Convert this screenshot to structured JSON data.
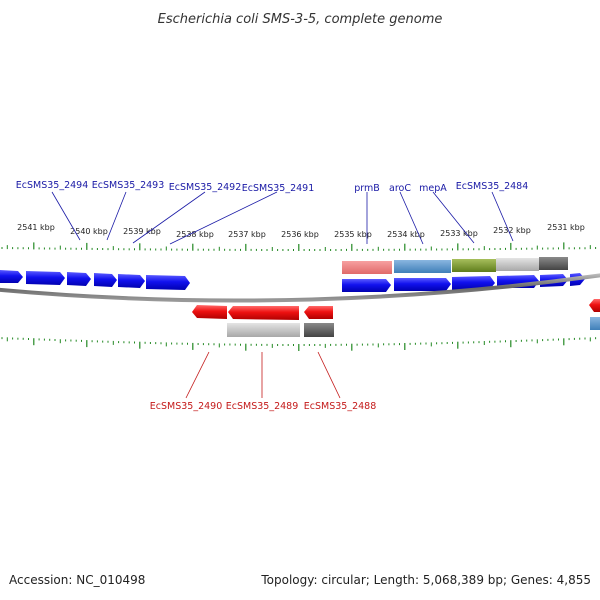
{
  "title": "Escherichia coli SMS-3-5, complete genome",
  "footer": {
    "accession": "Accession: NC_010498",
    "summary": "Topology: circular; Length: 5,068,389 bp; Genes: 4,855"
  },
  "colors": {
    "forward": "#1111ee",
    "reverse": "#ee1111",
    "backbone": "#777777",
    "tick": "#228822",
    "label_top": "#1a1aa6",
    "label_bottom": "#c41a1a"
  },
  "scale_labels": [
    "2541 kbp",
    "2540 kbp",
    "2539 kbp",
    "2538 kbp",
    "2537 kbp",
    "2536 kbp",
    "2535 kbp",
    "2534 kbp",
    "2533 kbp",
    "2532 kbp",
    "2531 kbp"
  ],
  "top_gene_labels": [
    "EcSMS35_2494",
    "EcSMS35_2493",
    "EcSMS35_2492",
    "EcSMS35_2491",
    "prmB",
    "aroC",
    "mepA",
    "EcSMS35_2484"
  ],
  "bottom_gene_labels": [
    "EcSMS35_2490",
    "EcSMS35_2489",
    "EcSMS35_2488"
  ]
}
